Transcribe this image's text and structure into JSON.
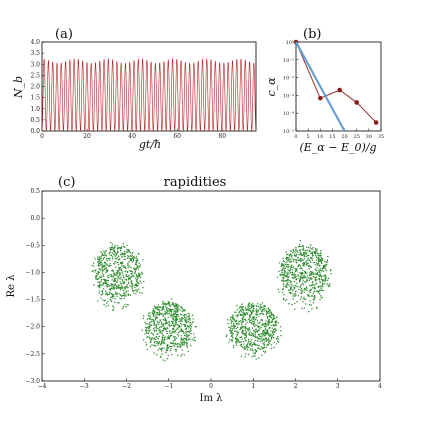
{
  "chart_data": [
    {
      "panel": "(a)",
      "type": "line",
      "title": "",
      "xlabel": "gt/ħ",
      "ylabel": "N_b",
      "xlim": [
        0,
        95
      ],
      "ylim": [
        0.0,
        4.0
      ],
      "xticks": [
        "0",
        "20",
        "40",
        "60",
        "80"
      ],
      "yticks": [
        "0.0",
        "0.5",
        "1.0",
        "1.5",
        "2.0",
        "2.5",
        "3.0",
        "3.5",
        "4.0"
      ],
      "series": [
        {
          "color": "#b22222",
          "form": "oscillation",
          "min": 0.0,
          "max": 3.25,
          "period": 1.9
        }
      ]
    },
    {
      "panel": "(b)",
      "type": "line",
      "title": "",
      "xlabel": "(E_α − E_0)/g",
      "ylabel": "c_α",
      "xlim": [
        0,
        35
      ],
      "yscale": "log",
      "ylim": [
        1e-05,
        1
      ],
      "xticks": [
        "0",
        "5",
        "10",
        "15",
        "20",
        "25",
        "30",
        "35"
      ],
      "yticks": [
        "10⁰",
        "10⁻¹",
        "10⁻²",
        "10⁻³",
        "10⁻⁴",
        "10⁻⁵"
      ],
      "series": [
        {
          "color": "#8b1a1a",
          "marker": "circle",
          "x": [
            0,
            10,
            18,
            25,
            33
          ],
          "y": [
            1.0,
            0.0007,
            0.002,
            0.0004,
            3e-05
          ]
        },
        {
          "color": "#6a9fd4",
          "marker": "none",
          "x": [
            0,
            20
          ],
          "y": [
            1.0,
            1e-05
          ]
        }
      ]
    },
    {
      "panel": "(c)",
      "type": "scatter",
      "title": "rapidities",
      "xlabel": "Im λ",
      "ylabel": "Re λ",
      "xlim": [
        -4,
        4
      ],
      "ylim": [
        -3.0,
        0.5
      ],
      "xticks": [
        "−4",
        "−3",
        "−2",
        "−1",
        "0",
        "1",
        "2",
        "3",
        "4"
      ],
      "yticks": [
        "0.5",
        "0.0",
        "−0.5",
        "−1.0",
        "−1.5",
        "−2.0",
        "−2.5",
        "−3.0"
      ],
      "point_color": "#2e8b2e",
      "clusters": [
        {
          "center_x": -2.2,
          "center_y": -1.0,
          "radius_x": 0.55,
          "radius_y": 0.5
        },
        {
          "center_x": 2.2,
          "center_y": -1.0,
          "radius_x": 0.55,
          "radius_y": 0.5
        },
        {
          "center_x": -1.0,
          "center_y": -2.0,
          "radius_x": 0.55,
          "radius_y": 0.45
        },
        {
          "center_x": 1.0,
          "center_y": -2.0,
          "radius_x": 0.55,
          "radius_y": 0.45
        }
      ]
    }
  ]
}
